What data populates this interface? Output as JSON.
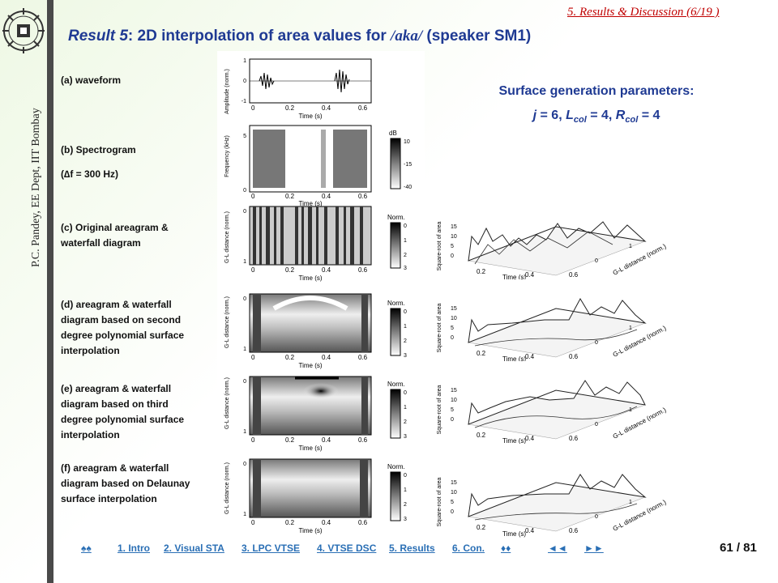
{
  "sidebar": {
    "author_text": "P.C. Pandey,  EE Dept,  IIT Bombay"
  },
  "header": {
    "section_tag": "5. Results & Discussion (6/19 )",
    "title_prefix": "Result 5",
    "title_main": ": 2D interpolation of area values for ",
    "title_phoneme": "/aka/",
    "title_suffix": " (speaker SM1)"
  },
  "labels": {
    "a": "(a) waveform",
    "b1": "(b) Spectrogram",
    "b2": "(∆f = 300 Hz)",
    "c": "(c) Original areagram & waterfall diagram",
    "d": "(d) areagram & waterfall diagram based on second degree polynomial surface interpolation",
    "e": "(e) areagram & waterfall diagram based on third degree polynomial surface interpolation",
    "f": "(f) areagram & waterfall diagram based on Delaunay surface interpolation"
  },
  "params": {
    "title": "Surface generation parameters:",
    "j": "6",
    "L": "4",
    "R": "4"
  },
  "figure_text": {
    "amp_ylabel": "Amplitude (norm.)",
    "freq_ylabel": "Frequency (kHz)",
    "gl_ylabel": "G-L distance (norm.)",
    "time_xlabel": "Time (s)",
    "x_ticks": [
      "0",
      "0.2",
      "0.4",
      "0.6"
    ],
    "amp_ticks": [
      "1",
      "0",
      "-1"
    ],
    "freq_ticks": [
      "5",
      "0"
    ],
    "gl_ticks": [
      "0",
      "1"
    ],
    "db_label": "dB",
    "db_ticks": [
      "10",
      "-15",
      "-40"
    ],
    "norm_label": "Norm.",
    "norm_ticks": [
      "0",
      "1",
      "2",
      "3"
    ],
    "sq_root_label": "Square-root of area",
    "z_ticks": [
      "15",
      "10",
      "5",
      "0"
    ],
    "w_time_ticks": [
      "0.2",
      "0.4",
      "0.6"
    ],
    "w_time_label": "Time (s)",
    "gl_axis_label": "G-L distance (norm.)",
    "w_gl_ticks": [
      "0",
      "1"
    ]
  },
  "nav": {
    "home": "♠♠",
    "intro": "1. Intro",
    "visual": "2. Visual STA",
    "lpc": "3. LPC VTSE",
    "vtse": "4. VTSE DSC",
    "results": "5. Results",
    "con": "6. Con.",
    "diamonds": "♦♦",
    "back": "◄◄",
    "forward": "►►"
  },
  "page": {
    "number": "61 / 81"
  },
  "colors": {
    "title": "#1f3a93",
    "section": "#c00000",
    "nav": "#2a6fb5"
  }
}
